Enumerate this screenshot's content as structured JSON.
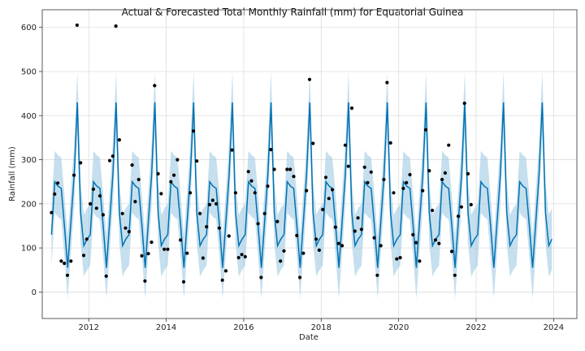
{
  "chart_data": {
    "type": "line",
    "title": "Actual & Forecasted Total Monthly Rainfall (mm) for Equatorial Guinea",
    "xlabel": "Date",
    "ylabel": "Rainfall (mm)",
    "xlim": [
      2010.8,
      2024.6
    ],
    "ylim": [
      -60,
      640
    ],
    "x_ticks": [
      2012,
      2014,
      2016,
      2018,
      2020,
      2022,
      2024
    ],
    "y_ticks": [
      0,
      100,
      200,
      300,
      400,
      500,
      600
    ],
    "grid": true,
    "colors": {
      "forecast": "#0072B2",
      "band": "#9ec9e2",
      "actual": "#000000",
      "grid": "#dddddd"
    },
    "forecast_month_profile": [
      130,
      250,
      240,
      235,
      150,
      55,
      160,
      265,
      430,
      180,
      105,
      120
    ],
    "forecast_start": 2011.04,
    "forecast_end": 2023.96,
    "uncertainty_half_width": 70,
    "series": [
      {
        "name": "forecast",
        "kind": "line"
      },
      {
        "name": "actual",
        "kind": "scatter",
        "points": [
          [
            2011.04,
            180
          ],
          [
            2011.12,
            222
          ],
          [
            2011.2,
            247
          ],
          [
            2011.29,
            70
          ],
          [
            2011.37,
            65
          ],
          [
            2011.45,
            38
          ],
          [
            2011.54,
            70
          ],
          [
            2011.62,
            265
          ],
          [
            2011.7,
            605
          ],
          [
            2011.79,
            293
          ],
          [
            2011.87,
            83
          ],
          [
            2011.95,
            120
          ],
          [
            2012.04,
            200
          ],
          [
            2012.12,
            233
          ],
          [
            2012.2,
            190
          ],
          [
            2012.29,
            218
          ],
          [
            2012.37,
            175
          ],
          [
            2012.45,
            36
          ],
          [
            2012.54,
            298
          ],
          [
            2012.62,
            308
          ],
          [
            2012.7,
            603
          ],
          [
            2012.79,
            345
          ],
          [
            2012.87,
            178
          ],
          [
            2012.95,
            145
          ],
          [
            2013.04,
            137
          ],
          [
            2013.12,
            288
          ],
          [
            2013.2,
            205
          ],
          [
            2013.29,
            255
          ],
          [
            2013.37,
            82
          ],
          [
            2013.45,
            25
          ],
          [
            2013.54,
            87
          ],
          [
            2013.62,
            113
          ],
          [
            2013.7,
            468
          ],
          [
            2013.79,
            268
          ],
          [
            2013.87,
            223
          ],
          [
            2013.95,
            97
          ],
          [
            2014.04,
            97
          ],
          [
            2014.12,
            250
          ],
          [
            2014.2,
            265
          ],
          [
            2014.29,
            300
          ],
          [
            2014.37,
            118
          ],
          [
            2014.45,
            23
          ],
          [
            2014.54,
            88
          ],
          [
            2014.62,
            225
          ],
          [
            2014.7,
            365
          ],
          [
            2014.79,
            297
          ],
          [
            2014.87,
            178
          ],
          [
            2014.95,
            77
          ],
          [
            2015.04,
            148
          ],
          [
            2015.12,
            198
          ],
          [
            2015.2,
            208
          ],
          [
            2015.29,
            200
          ],
          [
            2015.37,
            145
          ],
          [
            2015.45,
            27
          ],
          [
            2015.54,
            48
          ],
          [
            2015.62,
            127
          ],
          [
            2015.7,
            322
          ],
          [
            2015.79,
            225
          ],
          [
            2015.87,
            78
          ],
          [
            2015.95,
            85
          ],
          [
            2016.04,
            80
          ],
          [
            2016.12,
            273
          ],
          [
            2016.2,
            252
          ],
          [
            2016.29,
            225
          ],
          [
            2016.37,
            155
          ],
          [
            2016.45,
            33
          ],
          [
            2016.54,
            178
          ],
          [
            2016.62,
            240
          ],
          [
            2016.7,
            323
          ],
          [
            2016.79,
            278
          ],
          [
            2016.87,
            160
          ],
          [
            2016.95,
            70
          ],
          [
            2017.04,
            93
          ],
          [
            2017.12,
            278
          ],
          [
            2017.2,
            278
          ],
          [
            2017.29,
            262
          ],
          [
            2017.37,
            128
          ],
          [
            2017.45,
            33
          ],
          [
            2017.54,
            88
          ],
          [
            2017.62,
            230
          ],
          [
            2017.7,
            482
          ],
          [
            2017.79,
            337
          ],
          [
            2017.87,
            120
          ],
          [
            2017.95,
            95
          ],
          [
            2018.04,
            187
          ],
          [
            2018.12,
            260
          ],
          [
            2018.2,
            212
          ],
          [
            2018.29,
            232
          ],
          [
            2018.37,
            147
          ],
          [
            2018.45,
            110
          ],
          [
            2018.54,
            105
          ],
          [
            2018.62,
            333
          ],
          [
            2018.7,
            285
          ],
          [
            2018.79,
            417
          ],
          [
            2018.87,
            138
          ],
          [
            2018.95,
            168
          ],
          [
            2019.04,
            142
          ],
          [
            2019.12,
            283
          ],
          [
            2019.2,
            248
          ],
          [
            2019.29,
            272
          ],
          [
            2019.37,
            123
          ],
          [
            2019.45,
            38
          ],
          [
            2019.54,
            105
          ],
          [
            2019.62,
            255
          ],
          [
            2019.7,
            475
          ],
          [
            2019.79,
            338
          ],
          [
            2019.87,
            225
          ],
          [
            2019.95,
            75
          ],
          [
            2020.04,
            78
          ],
          [
            2020.12,
            235
          ],
          [
            2020.2,
            248
          ],
          [
            2020.29,
            266
          ],
          [
            2020.37,
            130
          ],
          [
            2020.45,
            112
          ],
          [
            2020.54,
            70
          ],
          [
            2020.62,
            230
          ],
          [
            2020.7,
            368
          ],
          [
            2020.79,
            275
          ],
          [
            2020.87,
            185
          ],
          [
            2020.95,
            118
          ],
          [
            2021.04,
            110
          ],
          [
            2021.12,
            255
          ],
          [
            2021.2,
            270
          ],
          [
            2021.29,
            333
          ],
          [
            2021.37,
            92
          ],
          [
            2021.45,
            38
          ],
          [
            2021.54,
            172
          ],
          [
            2021.62,
            193
          ],
          [
            2021.7,
            428
          ],
          [
            2021.79,
            268
          ],
          [
            2021.87,
            198
          ]
        ]
      }
    ]
  }
}
